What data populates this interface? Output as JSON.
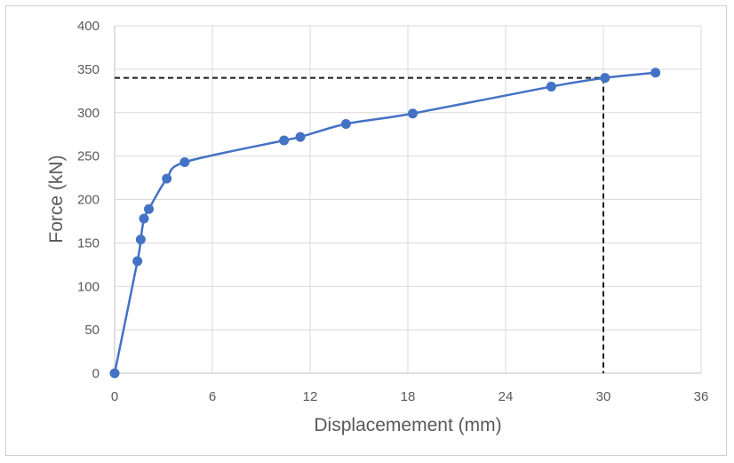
{
  "chart_data": {
    "type": "scatter",
    "title": "",
    "xlabel": "Displacemement (mm)",
    "ylabel": "Force (kN)",
    "xlim": [
      0,
      36
    ],
    "ylim": [
      0,
      400
    ],
    "x_ticks": [
      0,
      6,
      12,
      18,
      24,
      30,
      36
    ],
    "y_ticks": [
      0,
      50,
      100,
      150,
      200,
      250,
      300,
      350,
      400
    ],
    "x_tick_labels": [
      "0",
      "6",
      "12",
      "18",
      "24",
      "30",
      "36"
    ],
    "y_tick_labels": [
      "0",
      "50",
      "100",
      "150",
      "200",
      "250",
      "300",
      "350",
      "400"
    ],
    "grid": "on",
    "legend": "none",
    "series": [
      {
        "color": "#4472c4",
        "smooth": true,
        "markers": true,
        "points": [
          {
            "x": 0,
            "y": 0
          },
          {
            "x": 1.4,
            "y": 129
          },
          {
            "x": 1.6,
            "y": 154
          },
          {
            "x": 1.8,
            "y": 178
          },
          {
            "x": 2.1,
            "y": 189
          },
          {
            "x": 3.2,
            "y": 224
          },
          {
            "x": 4.3,
            "y": 243
          },
          {
            "x": 10.4,
            "y": 268
          },
          {
            "x": 11.4,
            "y": 272
          },
          {
            "x": 14.2,
            "y": 287
          },
          {
            "x": 18.3,
            "y": 299
          },
          {
            "x": 26.8,
            "y": 330
          },
          {
            "x": 30.1,
            "y": 340
          },
          {
            "x": 33.2,
            "y": 346
          }
        ]
      }
    ],
    "reference_lines": {
      "x": 30,
      "y": 340,
      "style": "dashed",
      "color": "#1a1a1a"
    }
  }
}
